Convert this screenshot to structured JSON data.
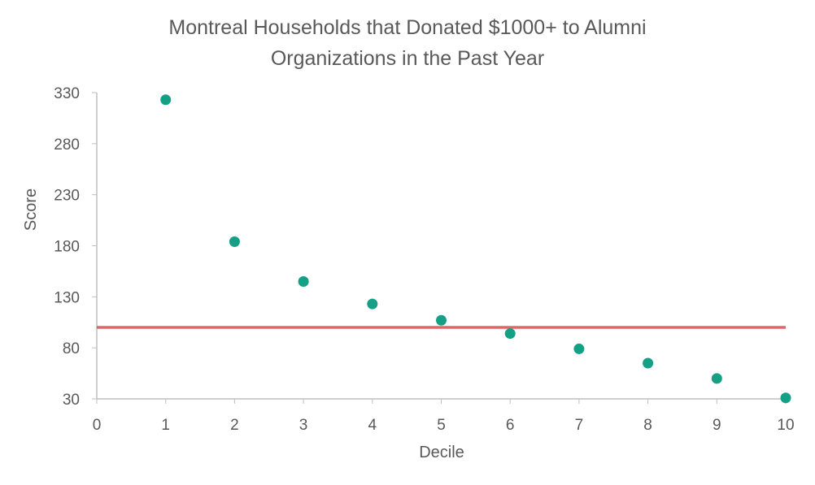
{
  "chart_data": {
    "type": "scatter",
    "title_line1": "Montreal Households that Donated $1000+ to Alumni",
    "title_line2": "Organizations in the Past Year",
    "xlabel": "Decile",
    "ylabel": "Score",
    "xlim": [
      0,
      10
    ],
    "ylim": [
      30,
      330
    ],
    "x_ticks": [
      "0",
      "1",
      "2",
      "3",
      "4",
      "5",
      "6",
      "7",
      "8",
      "9",
      "10"
    ],
    "y_ticks": [
      "30",
      "80",
      "130",
      "180",
      "230",
      "280",
      "330"
    ],
    "grid": false,
    "series": [
      {
        "x": [
          1,
          2,
          3,
          4,
          5,
          6,
          7,
          8,
          9,
          10
        ],
        "y": [
          323,
          184,
          145,
          123,
          107,
          94,
          79,
          65,
          50,
          31
        ],
        "color": "#14a085"
      }
    ],
    "reference_line": {
      "y": 100,
      "color": "#e06666"
    },
    "axis_color": "#bfbfbf",
    "text_color": "#595959"
  }
}
